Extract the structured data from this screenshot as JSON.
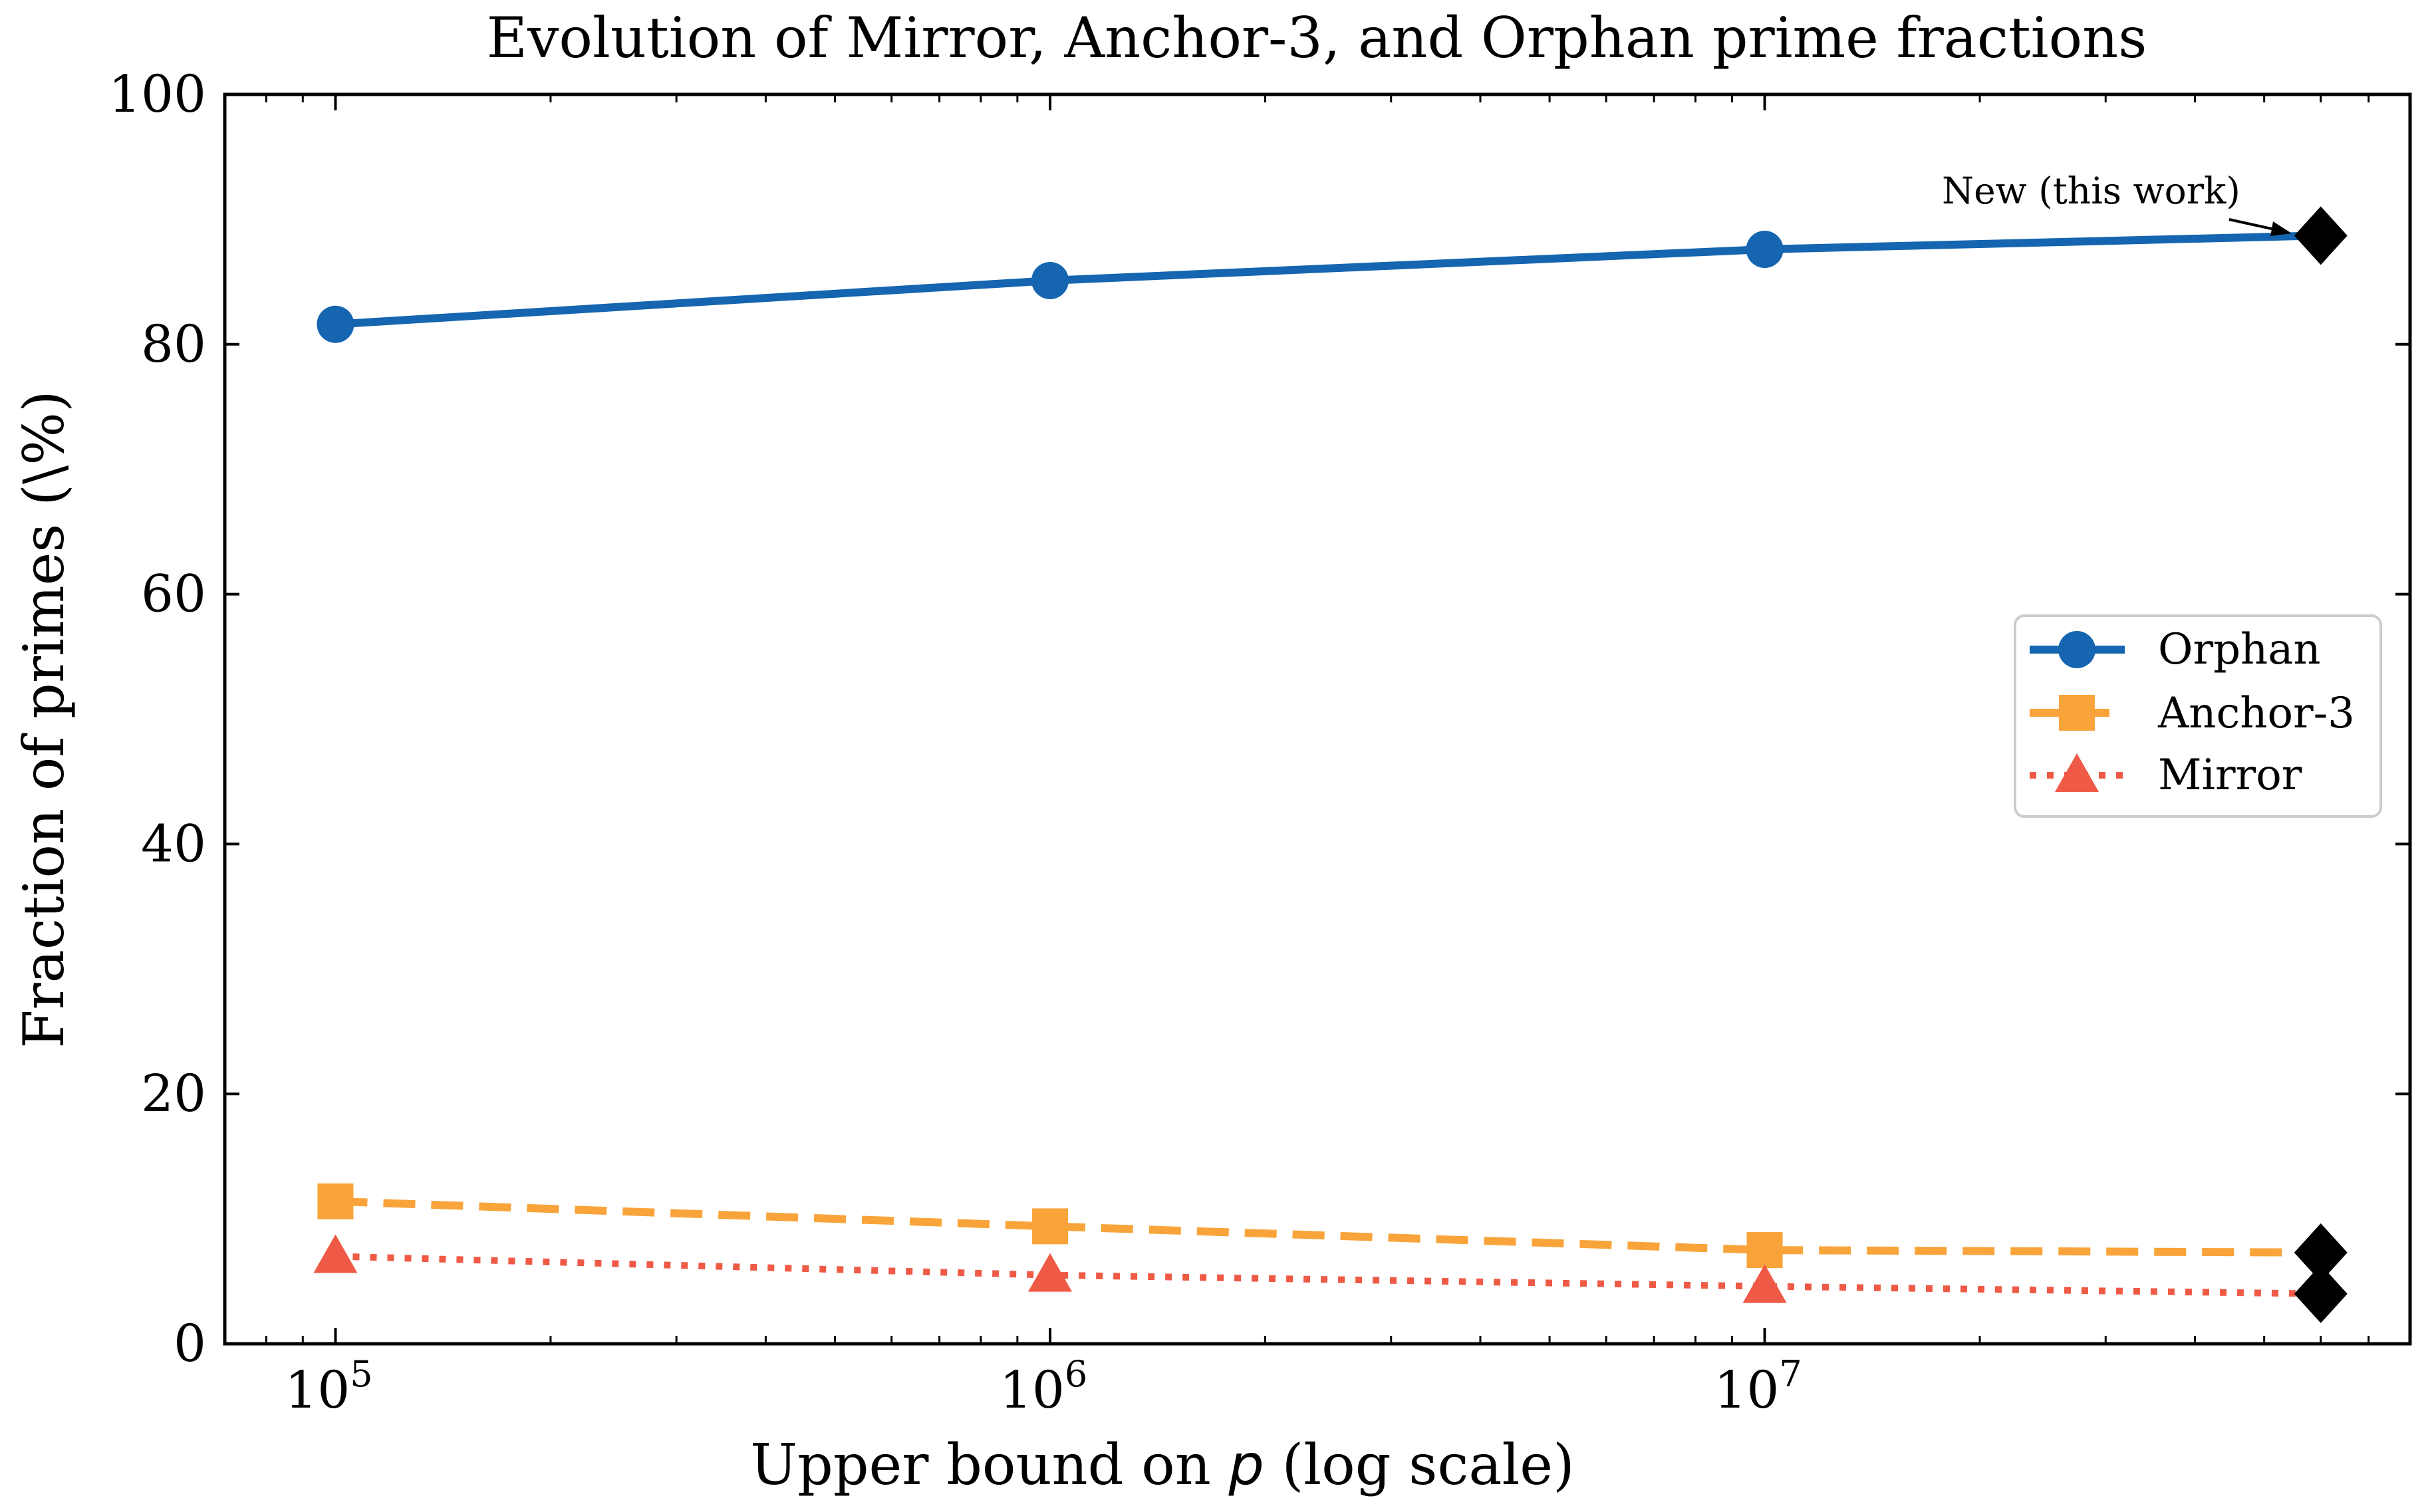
{
  "chart_data": {
    "type": "line",
    "title": "Evolution of Mirror, Anchor-3, and Orphan prime fractions",
    "xlabel_prefix": "Upper bound on ",
    "xlabel_var": "p",
    "xlabel_suffix": " (log scale)",
    "ylabel": "Fraction of primes (\\%)",
    "xscale": "log",
    "xlim": [
      70000,
      80000000
    ],
    "ylim": [
      0,
      100
    ],
    "yticks": [
      0,
      20,
      40,
      60,
      80,
      100
    ],
    "xticks": [
      {
        "value": 100000,
        "base": "10",
        "exp": "5"
      },
      {
        "value": 1000000,
        "base": "10",
        "exp": "6"
      },
      {
        "value": 10000000,
        "base": "10",
        "exp": "7"
      }
    ],
    "grid": false,
    "legend_position": "right",
    "series": [
      {
        "name": "Orphan",
        "x": [
          100000,
          1000000,
          10000000,
          60000000
        ],
        "values": [
          81.6,
          85.1,
          87.6,
          88.7
        ],
        "color": "#1565b0",
        "marker": "circle",
        "line_style": "solid"
      },
      {
        "name": "Anchor-3",
        "x": [
          100000,
          1000000,
          10000000,
          60000000
        ],
        "values": [
          11.4,
          9.4,
          7.5,
          7.3
        ],
        "color": "#f9a43a",
        "marker": "square",
        "line_style": "dashed"
      },
      {
        "name": "Mirror",
        "x": [
          100000,
          1000000,
          10000000,
          60000000
        ],
        "values": [
          7.0,
          5.5,
          4.6,
          4.0
        ],
        "color": "#ef5a46",
        "marker": "triangle",
        "line_style": "dotted"
      }
    ],
    "highlight": {
      "x": 60000000,
      "values": [
        88.7,
        7.3,
        4.0
      ],
      "color": "#000000",
      "marker": "diamond"
    },
    "annotation": {
      "text": "New (this work)",
      "x": 60000000,
      "y": 88.7
    }
  }
}
